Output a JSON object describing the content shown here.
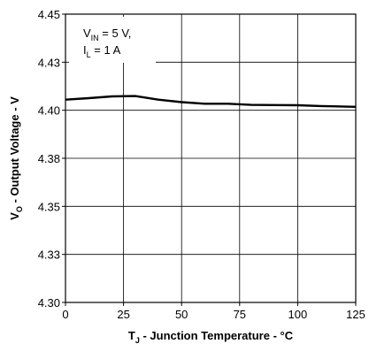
{
  "chart_data": {
    "type": "line",
    "x_axis": {
      "label_main": "T",
      "label_sub": "J",
      "label_rest": " - Junction Temperature - °C",
      "range": [
        0,
        125
      ],
      "ticks": [
        0,
        25,
        50,
        75,
        100,
        125
      ],
      "tick_labels": [
        "0",
        "25",
        "50",
        "75",
        "100",
        "125"
      ]
    },
    "y_axis": {
      "label_main": "V",
      "label_sub": "O",
      "label_rest": " - Output Voltage - V",
      "range": [
        4.3,
        4.45
      ],
      "ticks": [
        4.3,
        4.325,
        4.35,
        4.375,
        4.4,
        4.425,
        4.45
      ],
      "tick_labels": [
        "4.30",
        "4.33",
        "4.35",
        "4.38",
        "4.40",
        "4.43",
        "4.45"
      ]
    },
    "grid": true,
    "annotation": {
      "line1_main": "V",
      "line1_sub": "IN",
      "line1_rest": " = 5 V,",
      "line2_main": "I",
      "line2_sub": "L",
      "line2_rest": " = 1 A"
    },
    "series": [
      {
        "color": "#000000",
        "x": [
          0,
          10,
          20,
          30,
          40,
          50,
          60,
          70,
          80,
          90,
          100,
          110,
          125
        ],
        "y": [
          4.4055,
          4.4063,
          4.4072,
          4.4074,
          4.4055,
          4.4042,
          4.4034,
          4.4034,
          4.4028,
          4.4027,
          4.4026,
          4.4022,
          4.4018
        ]
      }
    ]
  }
}
